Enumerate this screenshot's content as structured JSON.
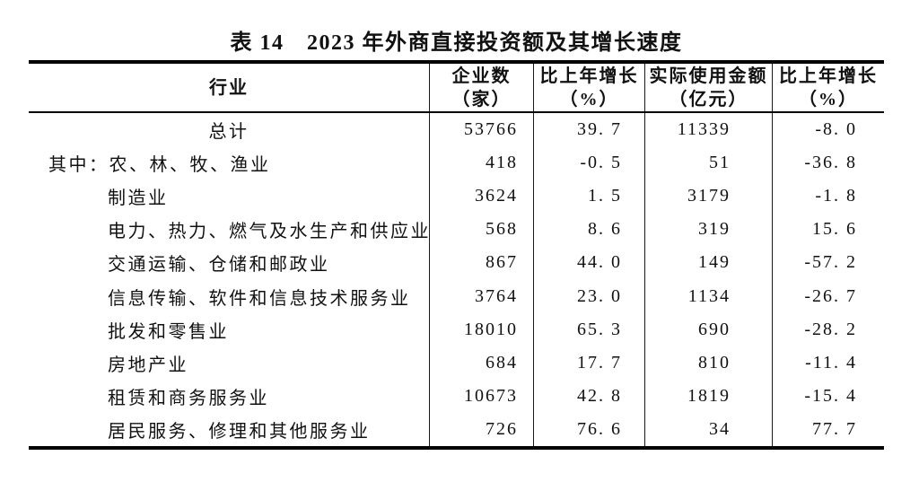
{
  "title": "表 14　2023 年外商直接投资额及其增长速度",
  "table": {
    "headers": {
      "industry": "行业",
      "enterprises": [
        "企业数",
        "（家）"
      ],
      "enterprises_growth": [
        "比上年增长",
        "（%）"
      ],
      "amount": [
        "实际使用金额",
        "（亿元）"
      ],
      "amount_growth": [
        "比上年增长",
        "（%）"
      ]
    },
    "rows": [
      {
        "industry": "总计",
        "enterprises": "53766",
        "enterprises_growth": "39. 7",
        "amount": "11339",
        "amount_growth": "-8. 0"
      },
      {
        "industry": "其中：农、林、牧、渔业",
        "enterprises": "418",
        "enterprises_growth": "-0. 5",
        "amount": "51",
        "amount_growth": "-36. 8"
      },
      {
        "industry": "制造业",
        "enterprises": "3624",
        "enterprises_growth": "1. 5",
        "amount": "3179",
        "amount_growth": "-1. 8"
      },
      {
        "industry": "电力、热力、燃气及水生产和供应业",
        "enterprises": "568",
        "enterprises_growth": "8. 6",
        "amount": "319",
        "amount_growth": "15. 6"
      },
      {
        "industry": "交通运输、仓储和邮政业",
        "enterprises": "867",
        "enterprises_growth": "44. 0",
        "amount": "149",
        "amount_growth": "-57. 2"
      },
      {
        "industry": "信息传输、软件和信息技术服务业",
        "enterprises": "3764",
        "enterprises_growth": "23. 0",
        "amount": "1134",
        "amount_growth": "-26. 7"
      },
      {
        "industry": "批发和零售业",
        "enterprises": "18010",
        "enterprises_growth": "65. 3",
        "amount": "690",
        "amount_growth": "-28. 2"
      },
      {
        "industry": "房地产业",
        "enterprises": "684",
        "enterprises_growth": "17. 7",
        "amount": "810",
        "amount_growth": "-11. 4"
      },
      {
        "industry": "租赁和商务服务业",
        "enterprises": "10673",
        "enterprises_growth": "42. 8",
        "amount": "1819",
        "amount_growth": "-15. 4"
      },
      {
        "industry": "居民服务、修理和其他服务业",
        "enterprises": "726",
        "enterprises_growth": "76. 6",
        "amount": "34",
        "amount_growth": "77. 7"
      }
    ]
  }
}
